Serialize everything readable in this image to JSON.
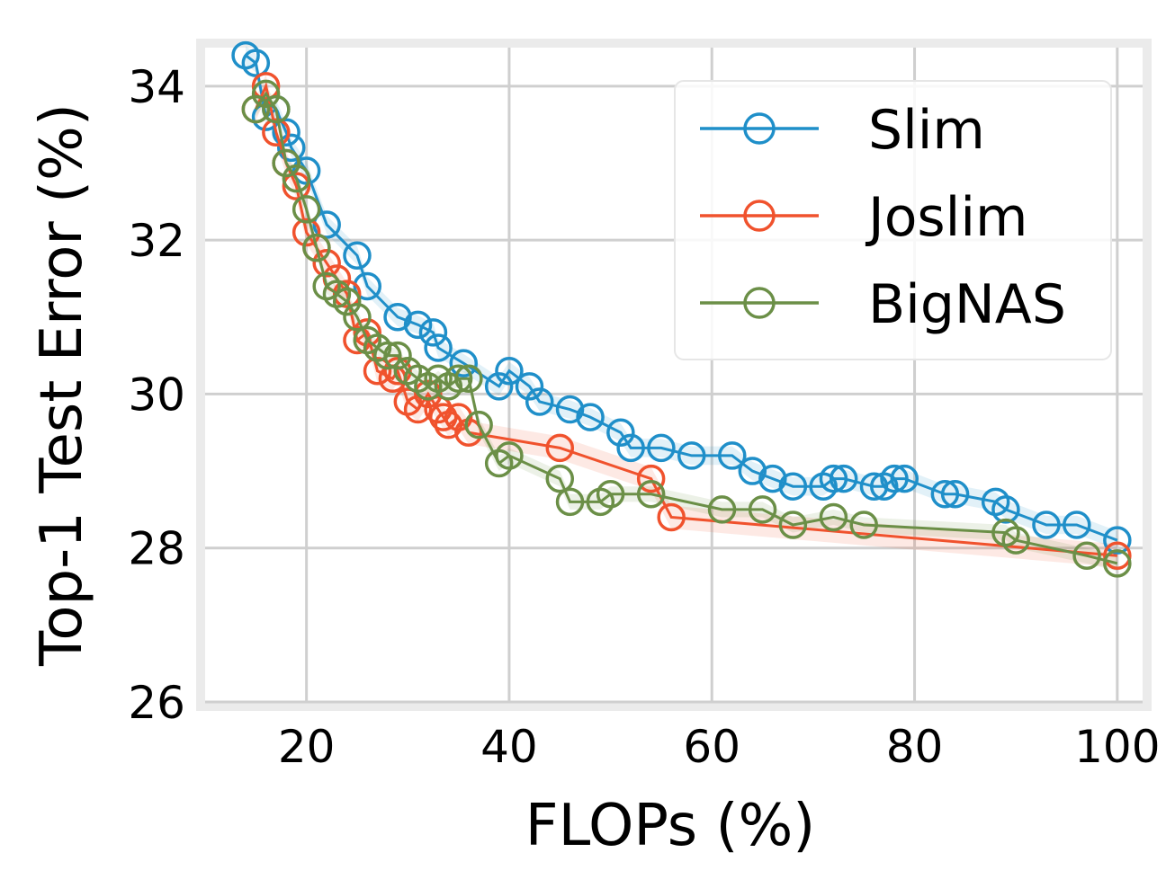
{
  "chart_data": {
    "type": "line",
    "title": "",
    "xlabel": "FLOPs (%)",
    "ylabel": "Top-1 Test Error (%)",
    "xlim": [
      10,
      102.5
    ],
    "ylim": [
      26,
      34.5
    ],
    "xticks": [
      20,
      40,
      60,
      80,
      100
    ],
    "yticks": [
      26,
      28,
      30,
      32,
      34
    ],
    "grid": true,
    "legend_position": "top-right",
    "series": [
      {
        "name": "Slim",
        "color": "#1f8fc9",
        "band": 0.12,
        "x": [
          14,
          15,
          16,
          17,
          18,
          18.5,
          20,
          22,
          25,
          26,
          29,
          31,
          32.5,
          33,
          35.5,
          39,
          40,
          42,
          43,
          46,
          48,
          51,
          52,
          55,
          58,
          62,
          64,
          66,
          68,
          71,
          72,
          73,
          76,
          77,
          78,
          79,
          83,
          84,
          88,
          89,
          93,
          96,
          100
        ],
        "y": [
          34.4,
          34.3,
          33.6,
          33.7,
          33.4,
          33.2,
          32.9,
          32.2,
          31.8,
          31.4,
          31.0,
          30.9,
          30.8,
          30.6,
          30.4,
          30.1,
          30.3,
          30.1,
          29.9,
          29.8,
          29.7,
          29.5,
          29.3,
          29.3,
          29.2,
          29.2,
          29.0,
          28.9,
          28.8,
          28.8,
          28.9,
          28.9,
          28.8,
          28.8,
          28.9,
          28.9,
          28.7,
          28.7,
          28.6,
          28.5,
          28.3,
          28.3,
          28.1
        ]
      },
      {
        "name": "Joslim",
        "color": "#f0522d",
        "band": 0.15,
        "x": [
          15,
          16,
          17,
          18,
          19,
          20,
          21,
          22,
          23,
          24,
          25,
          26,
          27,
          28.5,
          29,
          30,
          31,
          32,
          33,
          33.5,
          34,
          35,
          36,
          45,
          54,
          56,
          100
        ],
        "y": [
          33.7,
          34.0,
          33.4,
          33.0,
          32.7,
          32.1,
          31.9,
          31.7,
          31.5,
          31.3,
          30.7,
          30.8,
          30.3,
          30.2,
          30.3,
          29.9,
          29.8,
          30.0,
          29.8,
          29.7,
          29.6,
          29.7,
          29.5,
          29.3,
          28.9,
          28.4,
          27.9
        ]
      },
      {
        "name": "BigNAS",
        "color": "#6b8f47",
        "band": 0.1,
        "x": [
          15,
          16,
          17,
          18,
          19,
          20,
          21,
          22,
          23,
          24,
          25,
          26,
          27,
          28,
          29,
          30,
          31,
          32,
          33,
          34,
          35,
          36,
          37,
          39,
          40,
          45,
          46,
          49,
          50,
          54,
          61,
          65,
          68,
          72,
          75,
          89,
          90,
          97,
          100
        ],
        "y": [
          33.7,
          33.9,
          33.7,
          33.0,
          32.8,
          32.4,
          31.9,
          31.4,
          31.3,
          31.2,
          31.0,
          30.7,
          30.6,
          30.5,
          30.5,
          30.3,
          30.2,
          30.1,
          30.2,
          30.1,
          30.2,
          30.2,
          29.6,
          29.1,
          29.2,
          28.9,
          28.6,
          28.6,
          28.7,
          28.7,
          28.5,
          28.5,
          28.3,
          28.4,
          28.3,
          28.2,
          28.1,
          27.9,
          27.8
        ]
      }
    ]
  }
}
